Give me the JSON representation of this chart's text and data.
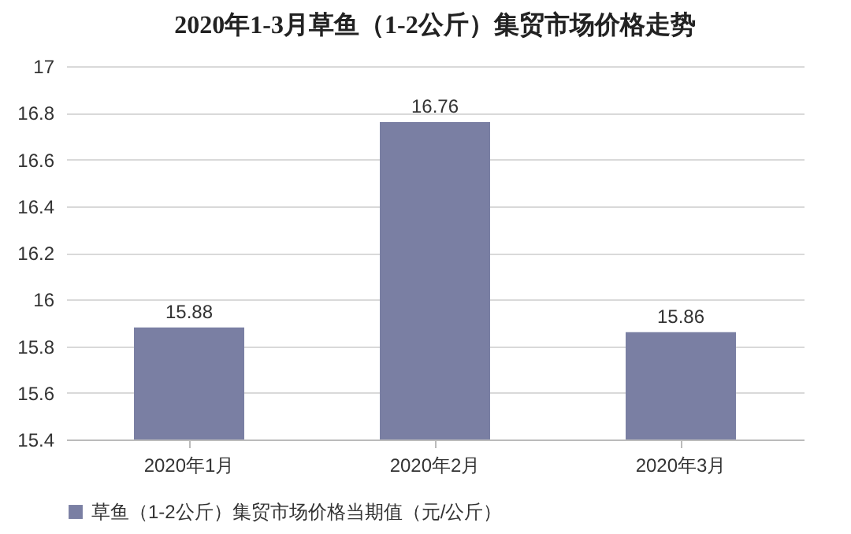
{
  "chart_data": {
    "type": "bar",
    "title": "2020年1-3月草鱼（1-2公斤）集贸市场价格走势",
    "categories": [
      "2020年1月",
      "2020年2月",
      "2020年3月"
    ],
    "series": [
      {
        "name": "草鱼（1-2公斤）集贸市场价格当期值（元/公斤）",
        "color": "#7a7fa3",
        "values": [
          15.88,
          16.76,
          15.86
        ]
      }
    ],
    "ylim": [
      15.4,
      17
    ],
    "yticks": [
      15.4,
      15.6,
      15.8,
      16,
      16.2,
      16.4,
      16.6,
      16.8,
      17
    ],
    "grid": "y",
    "legend": "bottom",
    "data_labels": true
  }
}
